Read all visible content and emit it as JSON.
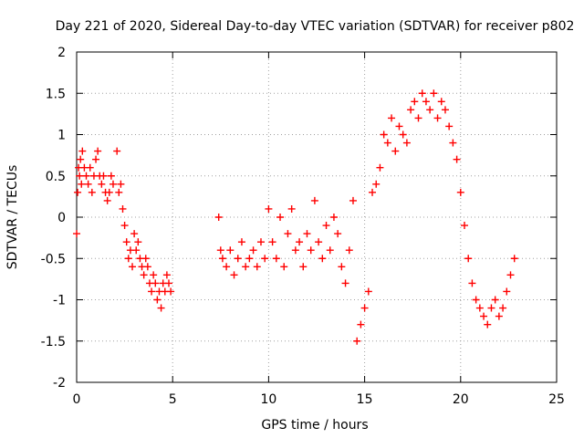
{
  "chart_data": {
    "type": "scatter",
    "title": "Day 221 of 2020, Sidereal Day-to-day VTEC variation (SDTVAR) for receiver p802",
    "xlabel": "GPS time / hours",
    "ylabel": "SDTVAR / TECUs",
    "xlim": [
      0,
      25
    ],
    "ylim": [
      -2,
      2
    ],
    "xticks": [
      0,
      5,
      10,
      15,
      20,
      25
    ],
    "xtick_labels": [
      "0",
      "5",
      "10",
      "15",
      "20",
      "25"
    ],
    "yticks": [
      -2,
      -1.5,
      -1,
      -0.5,
      0,
      0.5,
      1,
      1.5,
      2
    ],
    "ytick_labels": [
      "-2",
      "-1.5",
      "-1",
      "-0.5",
      "0",
      "0.5",
      "1",
      "1.5",
      "2"
    ],
    "grid": true,
    "marker": "+",
    "series": [
      {
        "name": "SDTVAR",
        "color": "#ff0000",
        "x": [
          0.0,
          0.05,
          0.1,
          0.15,
          0.2,
          0.25,
          0.3,
          0.4,
          0.5,
          0.6,
          0.7,
          0.8,
          0.9,
          1.0,
          1.1,
          1.2,
          1.3,
          1.4,
          1.5,
          1.6,
          1.7,
          1.8,
          1.9,
          2.1,
          2.2,
          2.3,
          2.4,
          2.5,
          2.6,
          2.7,
          2.8,
          2.9,
          3.0,
          3.1,
          3.2,
          3.3,
          3.4,
          3.5,
          3.6,
          3.7,
          3.8,
          3.9,
          4.0,
          4.1,
          4.2,
          4.3,
          4.4,
          4.5,
          4.6,
          4.7,
          4.8,
          4.9,
          7.4,
          7.5,
          7.6,
          7.8,
          8.0,
          8.2,
          8.4,
          8.6,
          8.8,
          9.0,
          9.2,
          9.4,
          9.6,
          9.8,
          10.0,
          10.2,
          10.4,
          10.6,
          10.8,
          11.0,
          11.2,
          11.4,
          11.6,
          11.8,
          12.0,
          12.2,
          12.4,
          12.6,
          12.8,
          13.0,
          13.2,
          13.4,
          13.6,
          13.8,
          14.0,
          14.2,
          14.4,
          14.6,
          14.8,
          15.0,
          15.2,
          15.4,
          15.6,
          15.8,
          16.0,
          16.2,
          16.4,
          16.6,
          16.8,
          17.0,
          17.2,
          17.4,
          17.6,
          17.8,
          18.0,
          18.2,
          18.4,
          18.6,
          18.8,
          19.0,
          19.2,
          19.4,
          19.6,
          19.8,
          20.0,
          20.2,
          20.4,
          20.6,
          20.8,
          21.0,
          21.2,
          21.4,
          21.6,
          21.8,
          22.0,
          22.2,
          22.4,
          22.6,
          22.8
        ],
        "y": [
          -0.2,
          0.3,
          0.6,
          0.5,
          0.7,
          0.4,
          0.8,
          0.6,
          0.5,
          0.4,
          0.6,
          0.3,
          0.5,
          0.7,
          0.8,
          0.5,
          0.4,
          0.5,
          0.3,
          0.2,
          0.3,
          0.5,
          0.4,
          0.8,
          0.3,
          0.4,
          0.1,
          -0.1,
          -0.3,
          -0.5,
          -0.4,
          -0.6,
          -0.2,
          -0.4,
          -0.3,
          -0.5,
          -0.6,
          -0.7,
          -0.5,
          -0.6,
          -0.8,
          -0.9,
          -0.7,
          -0.8,
          -1.0,
          -0.9,
          -1.1,
          -0.8,
          -0.9,
          -0.7,
          -0.8,
          -0.9,
          0.0,
          -0.4,
          -0.5,
          -0.6,
          -0.4,
          -0.7,
          -0.5,
          -0.3,
          -0.6,
          -0.5,
          -0.4,
          -0.6,
          -0.3,
          -0.5,
          0.1,
          -0.3,
          -0.5,
          0.0,
          -0.6,
          -0.2,
          0.1,
          -0.4,
          -0.3,
          -0.6,
          -0.2,
          -0.4,
          0.2,
          -0.3,
          -0.5,
          -0.1,
          -0.4,
          0.0,
          -0.2,
          -0.6,
          -0.8,
          -0.4,
          0.2,
          -1.5,
          -1.3,
          -1.1,
          -0.9,
          0.3,
          0.4,
          0.6,
          1.0,
          0.9,
          1.2,
          0.8,
          1.1,
          1.0,
          0.9,
          1.3,
          1.4,
          1.2,
          1.5,
          1.4,
          1.3,
          1.5,
          1.2,
          1.4,
          1.3,
          1.1,
          0.9,
          0.7,
          0.3,
          -0.1,
          -0.5,
          -0.8,
          -1.0,
          -1.1,
          -1.2,
          -1.3,
          -1.1,
          -1.0,
          -1.2,
          -1.1,
          -0.9,
          -0.7,
          -0.5
        ]
      }
    ]
  }
}
